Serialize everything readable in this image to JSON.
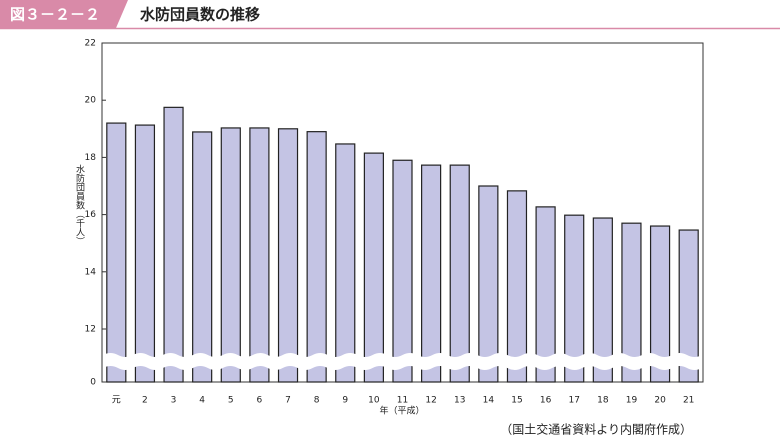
{
  "header": {
    "label": "図３－２－２"
  },
  "chart_data": {
    "type": "bar",
    "title": "水防団員数の推移",
    "y_label": "水防団員数（千人）",
    "x_label": "年（平成）",
    "source": "（国土交通省資料より内閣府作成）",
    "categories": [
      "元",
      "2",
      "3",
      "4",
      "5",
      "6",
      "7",
      "8",
      "9",
      "10",
      "11",
      "12",
      "13",
      "14",
      "15",
      "16",
      "17",
      "18",
      "19",
      "20",
      "21"
    ],
    "values": [
      19.2,
      19.13,
      19.75,
      18.89,
      19.03,
      19.03,
      19.0,
      18.9,
      18.47,
      18.15,
      17.9,
      17.73,
      17.73,
      17.0,
      16.83,
      16.27,
      15.98,
      15.88,
      15.7,
      15.6,
      15.46
    ],
    "color": "#c4c4e4",
    "ylim": [
      0,
      22
    ],
    "yticks": [
      0,
      12,
      14,
      16,
      18,
      20,
      22
    ],
    "axis_break": true
  }
}
